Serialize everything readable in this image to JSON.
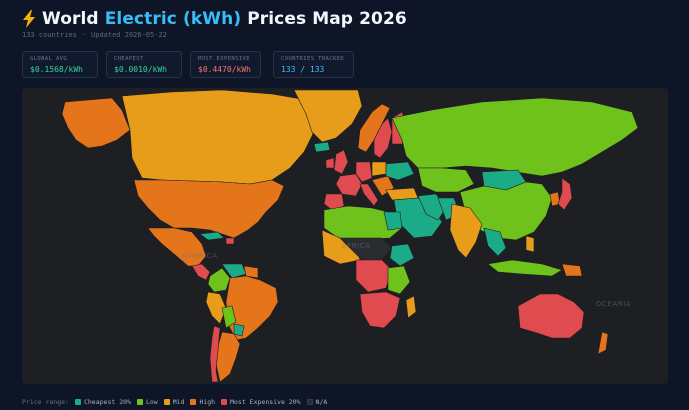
{
  "header": {
    "icon": "lightning-bolt-icon",
    "title_lead": "World",
    "title_accent": "Electric (kWh)",
    "title_tail": "Prices Map 2026",
    "country_count": "133 countries",
    "separator": "·",
    "updated": "Updated 2026-05-22"
  },
  "stats": {
    "global_avg": {
      "label": "GLOBAL AVG",
      "value": "$0.1568/kWh"
    },
    "cheapest": {
      "label": "CHEAPEST",
      "value": "$0.0010/kWh"
    },
    "most_expensive": {
      "label": "MOST EXPENSIVE",
      "value": "$0.4470/kWh"
    },
    "tracked": {
      "label": "COUNTRIES TRACKED",
      "value": "133 / 133"
    }
  },
  "map": {
    "region_labels": [
      "AMERICA",
      "AFRICA",
      "OCEANIA"
    ]
  },
  "legend": {
    "title": "Price range:",
    "items": [
      {
        "label": "Cheapest 20%",
        "color": "#1bab86"
      },
      {
        "label": "Low",
        "color": "#6fc11b"
      },
      {
        "label": "Mid",
        "color": "#e79d19"
      },
      {
        "label": "High",
        "color": "#e5751b"
      },
      {
        "label": "Most Expensive 20%",
        "color": "#df4b4f"
      },
      {
        "label": "N/A",
        "color": "#2a2c30"
      }
    ]
  },
  "colors": {
    "accent": "#38bdf8",
    "cheapest": "#1bab86",
    "low": "#6fc11b",
    "mid": "#e79d19",
    "high": "#e5751b",
    "expensive": "#df4b4f",
    "na": "#2a2c30",
    "stat_green": "#34d399",
    "stat_red": "#f87171",
    "stat_blue": "#38bdf8"
  }
}
